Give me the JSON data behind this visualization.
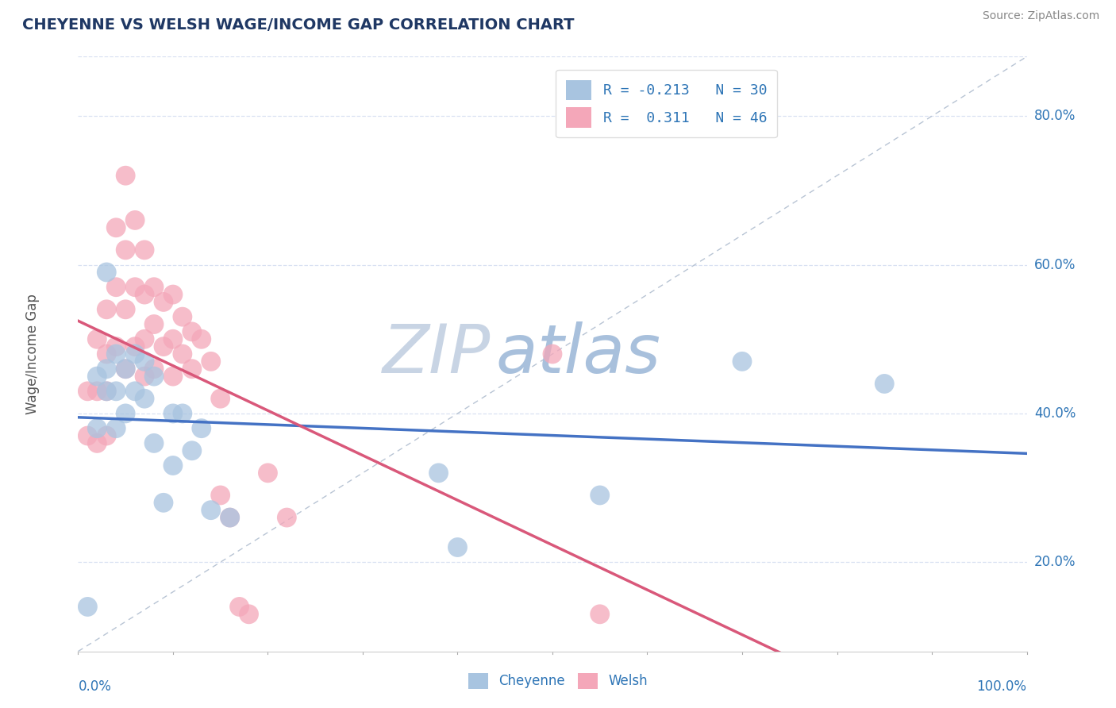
{
  "title": "CHEYENNE VS WELSH WAGE/INCOME GAP CORRELATION CHART",
  "source": "Source: ZipAtlas.com",
  "ylabel": "Wage/Income Gap",
  "x_range": [
    0.0,
    1.0
  ],
  "y_range": [
    0.08,
    0.88
  ],
  "cheyenne_color": "#a8c4e0",
  "cheyenne_line_color": "#4472c4",
  "welsh_color": "#f4a7b9",
  "welsh_line_color": "#d9587a",
  "ref_line_color": "#b8c4d4",
  "title_color": "#1f3864",
  "axis_color": "#2e75b6",
  "watermark_zip_color": "#d0d8e8",
  "watermark_atlas_color": "#b8cce4",
  "background_color": "#ffffff",
  "grid_color": "#d9e1f2",
  "cheyenne_x": [
    0.01,
    0.02,
    0.02,
    0.03,
    0.03,
    0.03,
    0.04,
    0.04,
    0.04,
    0.05,
    0.05,
    0.06,
    0.06,
    0.07,
    0.07,
    0.08,
    0.08,
    0.09,
    0.1,
    0.1,
    0.11,
    0.12,
    0.13,
    0.14,
    0.16,
    0.38,
    0.4,
    0.55,
    0.7,
    0.85
  ],
  "cheyenne_y": [
    0.14,
    0.45,
    0.38,
    0.59,
    0.46,
    0.43,
    0.48,
    0.43,
    0.38,
    0.46,
    0.4,
    0.48,
    0.43,
    0.47,
    0.42,
    0.45,
    0.36,
    0.28,
    0.4,
    0.33,
    0.4,
    0.35,
    0.38,
    0.27,
    0.26,
    0.32,
    0.22,
    0.29,
    0.47,
    0.44
  ],
  "welsh_x": [
    0.01,
    0.01,
    0.02,
    0.02,
    0.02,
    0.03,
    0.03,
    0.03,
    0.03,
    0.04,
    0.04,
    0.04,
    0.05,
    0.05,
    0.05,
    0.05,
    0.06,
    0.06,
    0.06,
    0.07,
    0.07,
    0.07,
    0.07,
    0.08,
    0.08,
    0.08,
    0.09,
    0.09,
    0.1,
    0.1,
    0.1,
    0.11,
    0.11,
    0.12,
    0.12,
    0.13,
    0.14,
    0.15,
    0.15,
    0.16,
    0.17,
    0.18,
    0.2,
    0.22,
    0.5,
    0.55
  ],
  "welsh_y": [
    0.43,
    0.37,
    0.5,
    0.43,
    0.36,
    0.54,
    0.48,
    0.43,
    0.37,
    0.65,
    0.57,
    0.49,
    0.72,
    0.62,
    0.54,
    0.46,
    0.66,
    0.57,
    0.49,
    0.62,
    0.56,
    0.5,
    0.45,
    0.57,
    0.52,
    0.46,
    0.55,
    0.49,
    0.56,
    0.5,
    0.45,
    0.53,
    0.48,
    0.51,
    0.46,
    0.5,
    0.47,
    0.42,
    0.29,
    0.26,
    0.14,
    0.13,
    0.32,
    0.26,
    0.48,
    0.13
  ],
  "legend_text_color": "#2e75b6",
  "legend_r_cheyenne": "R = -0.213   N = 30",
  "legend_r_welsh": "R =  0.311   N = 46"
}
